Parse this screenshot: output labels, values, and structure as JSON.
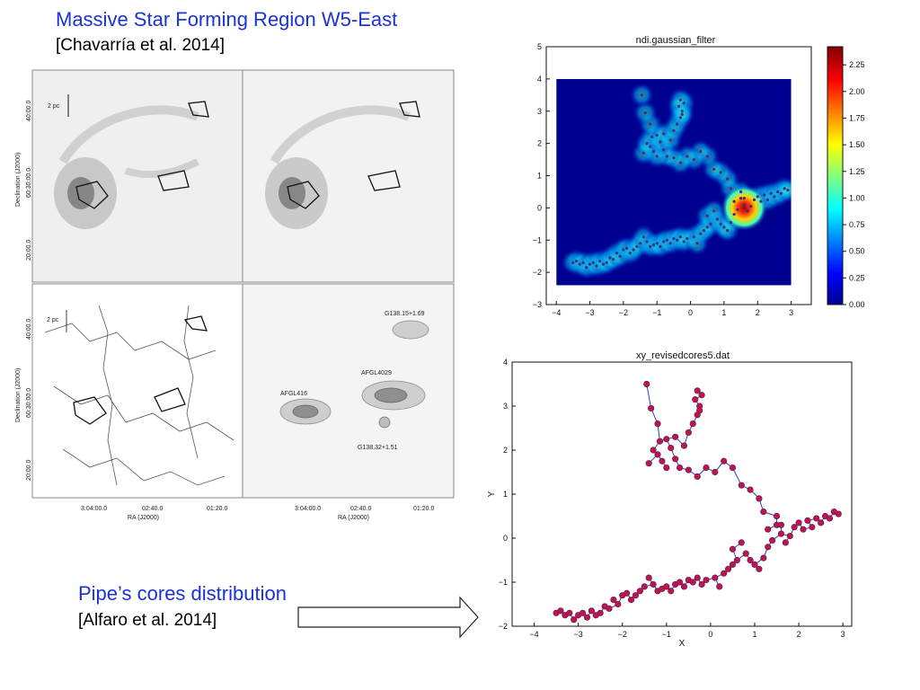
{
  "slide": {
    "title_main": "Massive Star Forming Region W5-East",
    "title_cite": "[Chavarría et al. 2014]",
    "subtitle": "Pipe’s cores distribution",
    "subtitle_cite": "[Alfaro et al. 2014]"
  },
  "figure_panels": {
    "scale_bar_label": "2 pc",
    "ylabel": "Declination (J2000)",
    "xlabel": "RA (J2000)",
    "dec_ticks": [
      "40:00.0",
      "60:30:00.0",
      "20:00.0"
    ],
    "ra_ticks": [
      "3:04:00.0",
      "02:40.0",
      "01:20.0"
    ],
    "regions": [
      "G138.15+1.69",
      "AFGL4029",
      "AFGL416",
      "G138.32+1.51"
    ]
  },
  "chart_data": [
    {
      "type": "heatmap",
      "title": "ndi.gaussian_filter",
      "xlim": [
        -4.3,
        3.6
      ],
      "ylim": [
        -3,
        5
      ],
      "xticks": [
        -4,
        -3,
        -2,
        -1,
        0,
        1,
        2,
        3
      ],
      "yticks": [
        -3,
        -2,
        -1,
        0,
        1,
        2,
        3,
        4,
        5
      ],
      "colorbar": {
        "min": 0.0,
        "max": 2.42,
        "ticks": [
          "0.00",
          "0.25",
          "0.50",
          "0.75",
          "1.00",
          "1.25",
          "1.50",
          "1.75",
          "2.00",
          "2.25"
        ]
      },
      "data_extent": {
        "x": [
          -4,
          3
        ],
        "y": [
          -2.4,
          4
        ]
      }
    },
    {
      "type": "scatter",
      "title": "xy_revisedcores5.dat",
      "xlabel": "X",
      "ylabel": "Y",
      "xlim": [
        -4.5,
        3.2
      ],
      "ylim": [
        -2,
        4
      ],
      "xticks": [
        -4,
        -3,
        -2,
        -1,
        0,
        1,
        2,
        3
      ],
      "yticks": [
        -2,
        -1,
        0,
        1,
        2,
        3,
        4
      ],
      "connected": true,
      "points": [
        [
          -3.5,
          -1.7
        ],
        [
          -3.4,
          -1.65
        ],
        [
          -3.3,
          -1.75
        ],
        [
          -3.2,
          -1.7
        ],
        [
          -3.1,
          -1.85
        ],
        [
          -3.0,
          -1.75
        ],
        [
          -2.9,
          -1.7
        ],
        [
          -2.8,
          -1.8
        ],
        [
          -2.7,
          -1.65
        ],
        [
          -2.6,
          -1.75
        ],
        [
          -2.5,
          -1.7
        ],
        [
          -2.4,
          -1.55
        ],
        [
          -2.3,
          -1.6
        ],
        [
          -2.2,
          -1.4
        ],
        [
          -2.1,
          -1.5
        ],
        [
          -2.0,
          -1.3
        ],
        [
          -1.9,
          -1.25
        ],
        [
          -1.8,
          -1.4
        ],
        [
          -1.7,
          -1.3
        ],
        [
          -1.6,
          -1.2
        ],
        [
          -1.5,
          -1.1
        ],
        [
          -1.4,
          -0.9
        ],
        [
          -1.3,
          -1.05
        ],
        [
          -1.2,
          -1.2
        ],
        [
          -1.1,
          -1.15
        ],
        [
          -1.0,
          -1.1
        ],
        [
          -0.9,
          -1.2
        ],
        [
          -0.8,
          -1.05
        ],
        [
          -0.7,
          -1.0
        ],
        [
          -0.6,
          -1.1
        ],
        [
          -0.5,
          -0.95
        ],
        [
          -0.4,
          -1.0
        ],
        [
          -0.3,
          -0.9
        ],
        [
          -0.2,
          -1.05
        ],
        [
          -0.1,
          -0.95
        ],
        [
          0.1,
          -0.9
        ],
        [
          0.2,
          -1.1
        ],
        [
          0.3,
          -0.8
        ],
        [
          0.4,
          -0.7
        ],
        [
          0.5,
          -0.6
        ],
        [
          0.6,
          -0.5
        ],
        [
          0.5,
          -0.25
        ],
        [
          0.7,
          -0.1
        ],
        [
          0.8,
          -0.35
        ],
        [
          0.9,
          -0.5
        ],
        [
          1.0,
          -0.6
        ],
        [
          1.1,
          -0.7
        ],
        [
          1.2,
          -0.45
        ],
        [
          1.3,
          -0.2
        ],
        [
          1.4,
          -0.05
        ],
        [
          1.3,
          0.2
        ],
        [
          1.5,
          0.3
        ],
        [
          1.6,
          0.1
        ],
        [
          1.7,
          -0.1
        ],
        [
          1.8,
          0.05
        ],
        [
          1.9,
          0.25
        ],
        [
          2.0,
          0.35
        ],
        [
          2.1,
          0.2
        ],
        [
          2.2,
          0.4
        ],
        [
          2.3,
          0.25
        ],
        [
          2.4,
          0.45
        ],
        [
          2.5,
          0.35
        ],
        [
          2.6,
          0.5
        ],
        [
          2.7,
          0.45
        ],
        [
          2.8,
          0.6
        ],
        [
          2.9,
          0.55
        ],
        [
          1.6,
          0.3
        ],
        [
          1.5,
          0.5
        ],
        [
          1.2,
          0.6
        ],
        [
          1.1,
          0.9
        ],
        [
          0.9,
          1.1
        ],
        [
          0.7,
          1.2
        ],
        [
          0.5,
          1.6
        ],
        [
          0.3,
          1.75
        ],
        [
          0.1,
          1.5
        ],
        [
          -0.1,
          1.6
        ],
        [
          -0.3,
          1.4
        ],
        [
          -0.5,
          1.55
        ],
        [
          -0.7,
          1.6
        ],
        [
          -0.8,
          1.8
        ],
        [
          -1.0,
          1.6
        ],
        [
          -1.1,
          1.75
        ],
        [
          -1.2,
          1.9
        ],
        [
          -1.4,
          1.7
        ],
        [
          -1.3,
          2.0
        ],
        [
          -1.15,
          2.2
        ],
        [
          -1.0,
          2.25
        ],
        [
          -0.9,
          2.05
        ],
        [
          -0.8,
          2.3
        ],
        [
          -0.6,
          2.1
        ],
        [
          -0.5,
          2.4
        ],
        [
          -0.4,
          2.6
        ],
        [
          -0.3,
          2.8
        ],
        [
          -0.25,
          3.0
        ],
        [
          -0.2,
          3.25
        ],
        [
          -0.3,
          3.35
        ],
        [
          -0.35,
          3.15
        ],
        [
          -0.25,
          2.9
        ],
        [
          -1.2,
          2.6
        ],
        [
          -1.35,
          2.95
        ],
        [
          -1.45,
          3.5
        ]
      ]
    }
  ]
}
